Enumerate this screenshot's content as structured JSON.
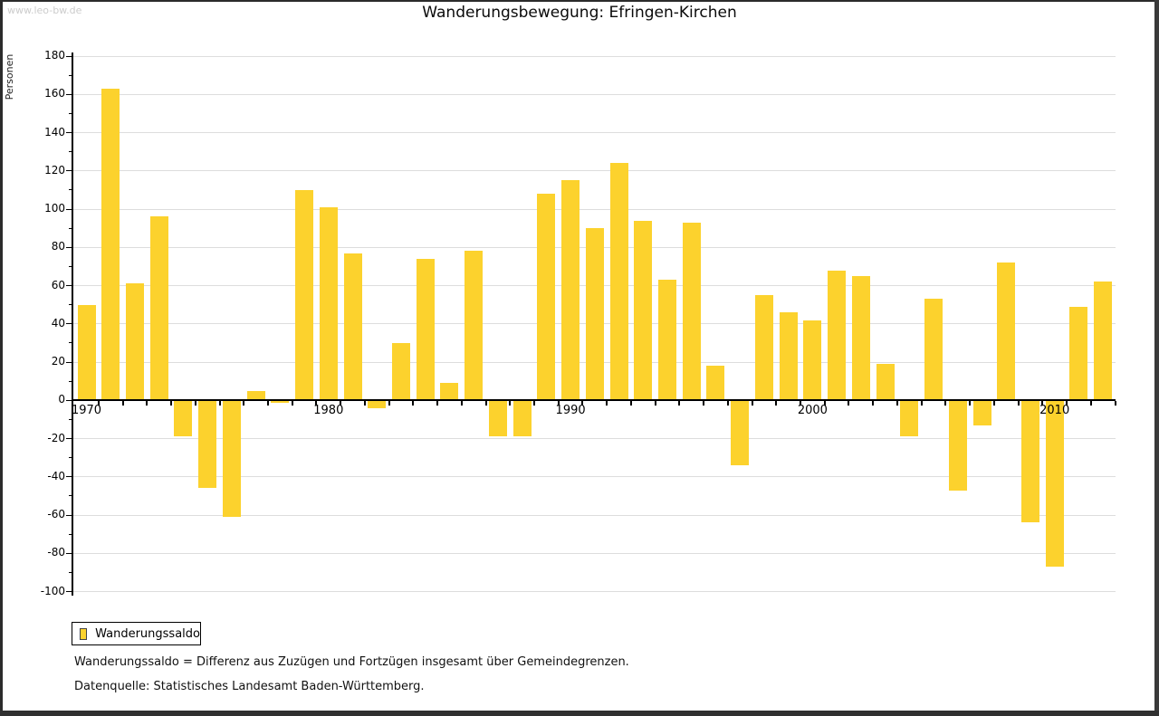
{
  "window": {
    "watermark": "www.leo-bw.de"
  },
  "header": {
    "title": "Wanderungsbewegung: Efringen-Kirchen"
  },
  "chart_data": {
    "type": "bar",
    "title": "Wanderungsbewegung: Efringen-Kirchen",
    "ylabel": "Personen",
    "ylim": [
      -100,
      180
    ],
    "ytick_step": 20,
    "grid": true,
    "legend_position": "bottom-left",
    "series_name": "Wanderungssaldo",
    "bar_color": "#FCD22D",
    "gridline_color": "#DDDDDD",
    "axis_color": "#000000",
    "categories": [
      1970,
      1971,
      1972,
      1973,
      1974,
      1975,
      1976,
      1977,
      1978,
      1979,
      1980,
      1981,
      1982,
      1983,
      1984,
      1985,
      1986,
      1987,
      1988,
      1989,
      1990,
      1991,
      1992,
      1993,
      1994,
      1995,
      1996,
      1997,
      1998,
      1999,
      2000,
      2001,
      2002,
      2003,
      2004,
      2005,
      2006,
      2007,
      2008,
      2009,
      2010,
      2011,
      2012
    ],
    "values": [
      50,
      163,
      61,
      96,
      -19,
      -46,
      -61,
      5,
      -1,
      110,
      101,
      77,
      -4,
      30,
      74,
      9,
      78,
      -19,
      -19,
      108,
      115,
      90,
      124,
      94,
      63,
      93,
      18,
      -34,
      55,
      46,
      42,
      68,
      65,
      19,
      -19,
      53,
      -47,
      -13,
      72,
      -64,
      -87,
      49,
      62
    ],
    "xtick_labels": [
      "1970",
      "1980",
      "1990",
      "2000",
      "2010"
    ]
  },
  "legend": {
    "label": "Wanderungssaldo"
  },
  "notes": {
    "line1": "Wanderungssaldo = Differenz aus Zuzügen und Fortzügen insgesamt über Gemeindegrenzen.",
    "line2": "Datenquelle: Statistisches Landesamt Baden-Württemberg."
  }
}
